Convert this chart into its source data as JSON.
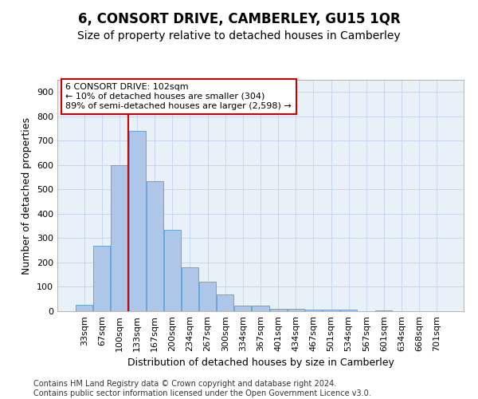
{
  "title": "6, CONSORT DRIVE, CAMBERLEY, GU15 1QR",
  "subtitle": "Size of property relative to detached houses in Camberley",
  "xlabel": "Distribution of detached houses by size in Camberley",
  "ylabel": "Number of detached properties",
  "categories": [
    "33sqm",
    "67sqm",
    "100sqm",
    "133sqm",
    "167sqm",
    "200sqm",
    "234sqm",
    "267sqm",
    "300sqm",
    "334sqm",
    "367sqm",
    "401sqm",
    "434sqm",
    "467sqm",
    "501sqm",
    "534sqm",
    "567sqm",
    "601sqm",
    "634sqm",
    "668sqm",
    "701sqm"
  ],
  "values": [
    25,
    270,
    600,
    740,
    535,
    335,
    180,
    120,
    68,
    22,
    22,
    10,
    10,
    5,
    5,
    5,
    0,
    3,
    0,
    0,
    0
  ],
  "bar_color": "#aec6e8",
  "bar_edge_color": "#5b9bd5",
  "background_color": "#ffffff",
  "plot_bg_color": "#e8f0f8",
  "grid_color": "#c8d8ec",
  "annotation_box_text_line1": "6 CONSORT DRIVE: 102sqm",
  "annotation_box_text_line2": "← 10% of detached houses are smaller (304)",
  "annotation_box_text_line3": "89% of semi-detached houses are larger (2,598) →",
  "annotation_line_color": "#cc0000",
  "footer_line1": "Contains HM Land Registry data © Crown copyright and database right 2024.",
  "footer_line2": "Contains public sector information licensed under the Open Government Licence v3.0.",
  "ylim": [
    0,
    950
  ],
  "yticks": [
    0,
    100,
    200,
    300,
    400,
    500,
    600,
    700,
    800,
    900
  ],
  "title_fontsize": 12,
  "subtitle_fontsize": 10,
  "axis_label_fontsize": 9,
  "tick_fontsize": 8,
  "footer_fontsize": 7,
  "annotation_fontsize": 8
}
